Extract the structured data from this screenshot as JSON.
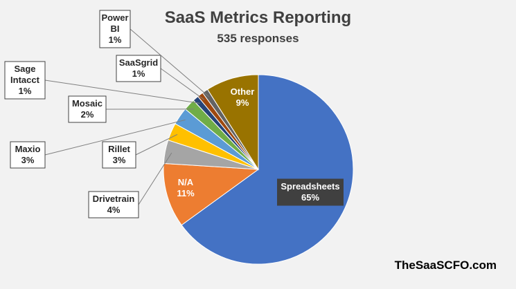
{
  "chart_data": {
    "type": "pie",
    "title": "SaaS Metrics Reporting",
    "subtitle": "535 responses",
    "slices": [
      {
        "label": "Spreadsheets",
        "value": 65,
        "pct_label": "65%",
        "color": "#4472c4"
      },
      {
        "label": "N/A",
        "value": 11,
        "pct_label": "11%",
        "color": "#ed7d31"
      },
      {
        "label": "Drivetrain",
        "value": 4,
        "pct_label": "4%",
        "color": "#a5a5a5"
      },
      {
        "label": "Rillet",
        "value": 3,
        "pct_label": "3%",
        "color": "#ffc000"
      },
      {
        "label": "Maxio",
        "value": 3,
        "pct_label": "3%",
        "color": "#5b9bd5"
      },
      {
        "label": "Mosaic",
        "value": 2,
        "pct_label": "2%",
        "color": "#70ad47"
      },
      {
        "label": "Sage Intacct",
        "value": 1,
        "pct_label": "1%",
        "color": "#264478"
      },
      {
        "label": "SaaSgrid",
        "value": 1,
        "pct_label": "1%",
        "color": "#9e480e"
      },
      {
        "label": "Power BI",
        "value": 1,
        "pct_label": "1%",
        "color": "#636363"
      },
      {
        "label": "Other",
        "value": 9,
        "pct_label": "9%",
        "color": "#997300"
      }
    ]
  },
  "watermark": "TheSaaSCFO.com"
}
